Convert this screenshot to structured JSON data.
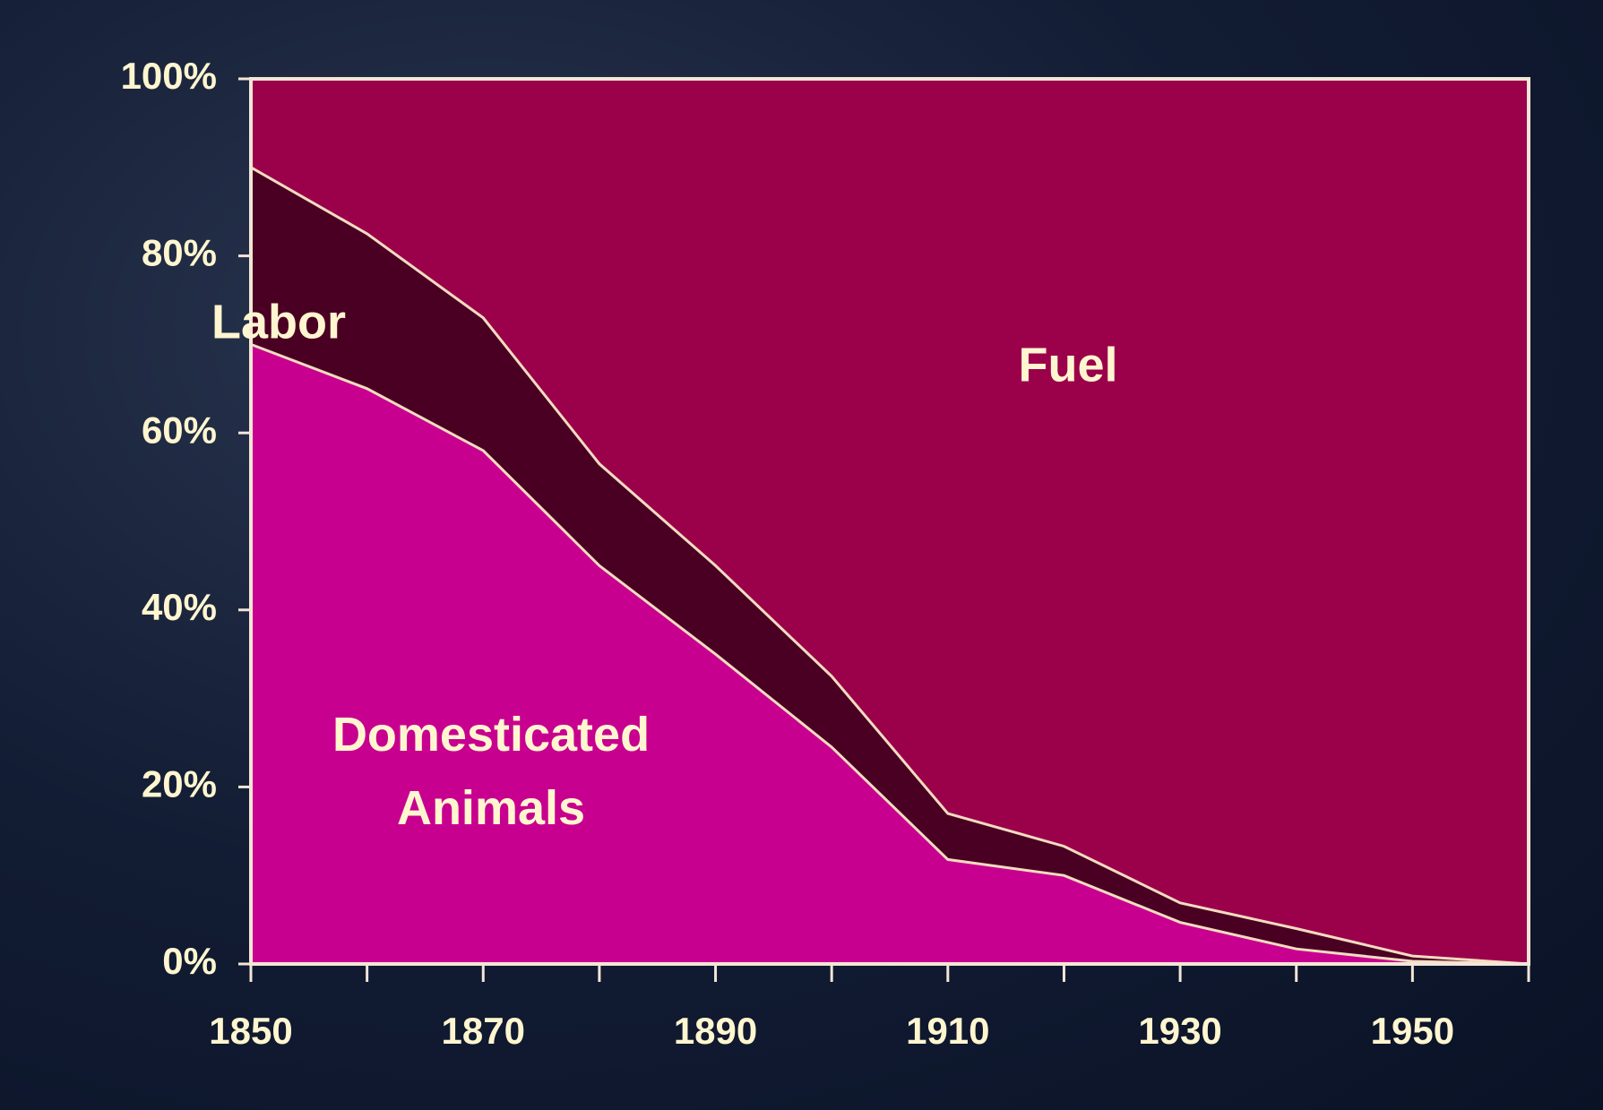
{
  "chart_data": {
    "type": "stacked-area",
    "x": [
      1850,
      1860,
      1870,
      1880,
      1890,
      1900,
      1910,
      1920,
      1930,
      1940,
      1950,
      1960
    ],
    "series": [
      {
        "name": "Domesticated Animals",
        "color": "#c8008f",
        "values": [
          70,
          65,
          58,
          45,
          35,
          24.5,
          11.8,
          10,
          4.7,
          1.7,
          0.3,
          0
        ]
      },
      {
        "name": "Labor",
        "color": "#4a0022",
        "values": [
          20,
          17.5,
          15,
          11.5,
          10,
          8,
          5.2,
          3.3,
          2.2,
          2.3,
          0.6,
          0
        ]
      },
      {
        "name": "Fuel",
        "color": "#9b004b",
        "values": [
          10,
          17.5,
          27,
          43.5,
          55,
          67.5,
          83,
          86.7,
          93.1,
          96,
          99.1,
          100
        ]
      }
    ],
    "xlim": [
      1850,
      1960
    ],
    "xticks": [
      1850,
      1870,
      1890,
      1910,
      1930,
      1950
    ],
    "ylim": [
      0,
      100
    ],
    "yticks": [
      {
        "value": 0,
        "label": "0%"
      },
      {
        "value": 20,
        "label": "20%"
      },
      {
        "value": 40,
        "label": "40%"
      },
      {
        "value": 60,
        "label": "60%"
      },
      {
        "value": 80,
        "label": "80%"
      },
      {
        "value": 100,
        "label": "100%"
      }
    ]
  }
}
